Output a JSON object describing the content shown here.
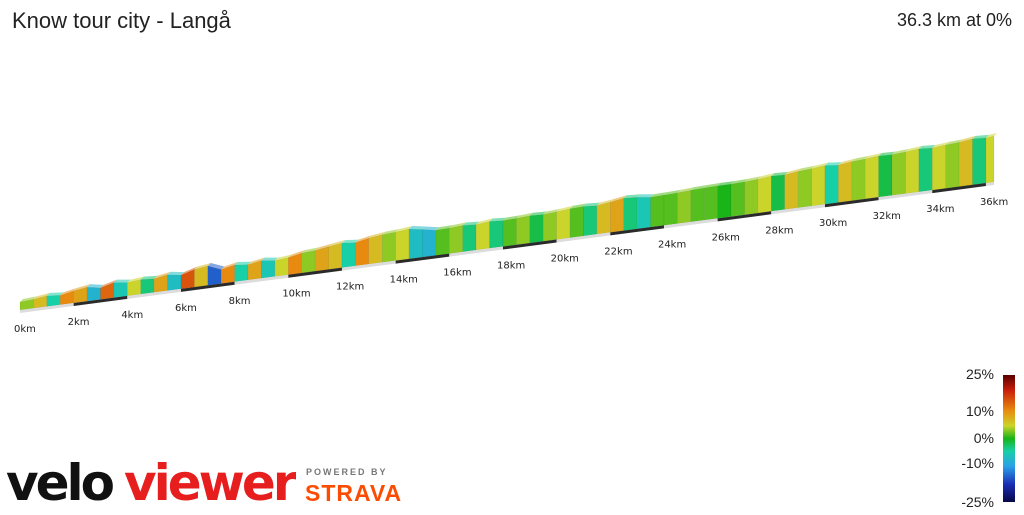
{
  "header": {
    "title": "Know tour city - Langå",
    "summary": "36.3 km at 0%"
  },
  "chart_data": {
    "type": "area",
    "title": "Know tour city - Langå",
    "xlabel": "",
    "ylabel": "",
    "x_unit": "km",
    "x_range": [
      0,
      36.3
    ],
    "tick_labels": [
      "0km",
      "2km",
      "4km",
      "6km",
      "8km",
      "10km",
      "12km",
      "14km",
      "16km",
      "18km",
      "20km",
      "22km",
      "24km",
      "26km",
      "28km",
      "30km",
      "32km",
      "34km",
      "36km"
    ],
    "distance_km": [
      0,
      0.5,
      1,
      1.5,
      2,
      2.5,
      3,
      3.5,
      4,
      4.5,
      5,
      5.5,
      6,
      6.5,
      7,
      7.5,
      8,
      8.5,
      9,
      9.5,
      10,
      10.5,
      11,
      11.5,
      12,
      12.5,
      13,
      13.5,
      14,
      14.5,
      15,
      15.5,
      16,
      16.5,
      17,
      17.5,
      18,
      18.5,
      19,
      19.5,
      20,
      20.5,
      21,
      21.5,
      22,
      22.5,
      23,
      23.5,
      24,
      24.5,
      25,
      25.5,
      26,
      26.5,
      27,
      27.5,
      28,
      28.5,
      29,
      29.5,
      30,
      30.5,
      31,
      31.5,
      32,
      32.5,
      33,
      33.5,
      34,
      34.5,
      35,
      35.5,
      36,
      36.3
    ],
    "gradient_pct": [
      2,
      4,
      -3,
      6,
      5,
      -6,
      8,
      -4,
      3,
      -2,
      5,
      -5,
      9,
      4,
      -12,
      6,
      -3,
      5,
      -4,
      3,
      6,
      2,
      5,
      4,
      -3,
      6,
      4,
      2,
      3,
      -5,
      -6,
      1,
      2,
      -2,
      3,
      -2,
      1,
      2,
      -1,
      2,
      3,
      1,
      -2,
      4,
      5,
      -2,
      -4,
      1,
      1,
      2,
      1,
      1,
      0,
      1,
      2,
      3,
      -1,
      4,
      2,
      3,
      -3,
      4,
      2,
      3,
      -1,
      2,
      3,
      -2,
      3,
      2,
      4,
      -2,
      3,
      1
    ],
    "gradient_scale": {
      "labels": [
        "25%",
        "10%",
        "0%",
        "-10%",
        "-25%"
      ],
      "colors": [
        "#5a0000",
        "#c81e0a",
        "#e88a10",
        "#cbd42a",
        "#18b418",
        "#18d0a8",
        "#2aa0e8",
        "#1a2eb4",
        "#080848"
      ]
    },
    "grid": false,
    "legend_position": "bottom-right"
  },
  "branding": {
    "logo": "veloviewer",
    "powered_by": "POWERED BY",
    "strava": "STRAVA"
  }
}
